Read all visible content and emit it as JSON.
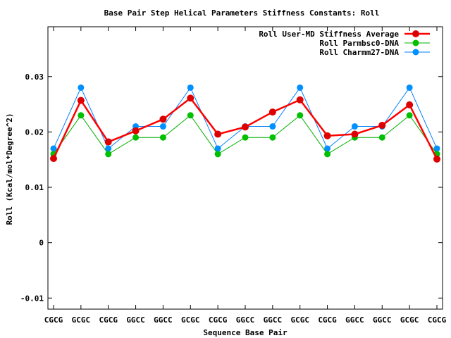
{
  "chart_data": {
    "type": "line",
    "title": "Base Pair Step Helical Parameters Stiffness Constants: Roll",
    "xlabel": "Sequence Base Pair",
    "ylabel": "Roll (Kcal/mol*Degree^2)",
    "categories": [
      "CGCG",
      "GCGC",
      "CGCG",
      "GGCC",
      "GGCC",
      "GCGC",
      "CGCG",
      "GGCC",
      "GGCC",
      "GCGC",
      "CGCG",
      "GGCC",
      "GGCC",
      "GCGC",
      "CGCG"
    ],
    "ylim": [
      -0.012,
      0.039
    ],
    "yticks": [
      -0.01,
      0,
      0.01,
      0.02,
      0.03
    ],
    "ytick_labels": [
      "-0.01",
      "0",
      "0.01",
      "0.02",
      "0.03"
    ],
    "grid": false,
    "legend_position": "top-right",
    "series": [
      {
        "name": "Roll User-MD Stiffness Average",
        "color": "#ff0000",
        "marker_color": "#dd0000",
        "values": [
          0.0152,
          0.0257,
          0.0182,
          0.0202,
          0.0223,
          0.0261,
          0.0196,
          0.0209,
          0.0236,
          0.0258,
          0.0193,
          0.0196,
          0.0212,
          0.0249,
          0.0151
        ]
      },
      {
        "name": "Roll Parmbsc0-DNA",
        "color": "#00b000",
        "marker_color": "#00c000",
        "values": [
          0.016,
          0.023,
          0.016,
          0.019,
          0.019,
          0.023,
          0.016,
          0.019,
          0.019,
          0.023,
          0.016,
          0.019,
          0.019,
          0.023,
          0.016
        ]
      },
      {
        "name": "Roll Charmm27-DNA",
        "color": "#0080ff",
        "marker_color": "#0090ff",
        "values": [
          0.017,
          0.028,
          0.017,
          0.021,
          0.021,
          0.028,
          0.017,
          0.021,
          0.021,
          0.028,
          0.017,
          0.021,
          0.021,
          0.028,
          0.017
        ]
      }
    ]
  }
}
